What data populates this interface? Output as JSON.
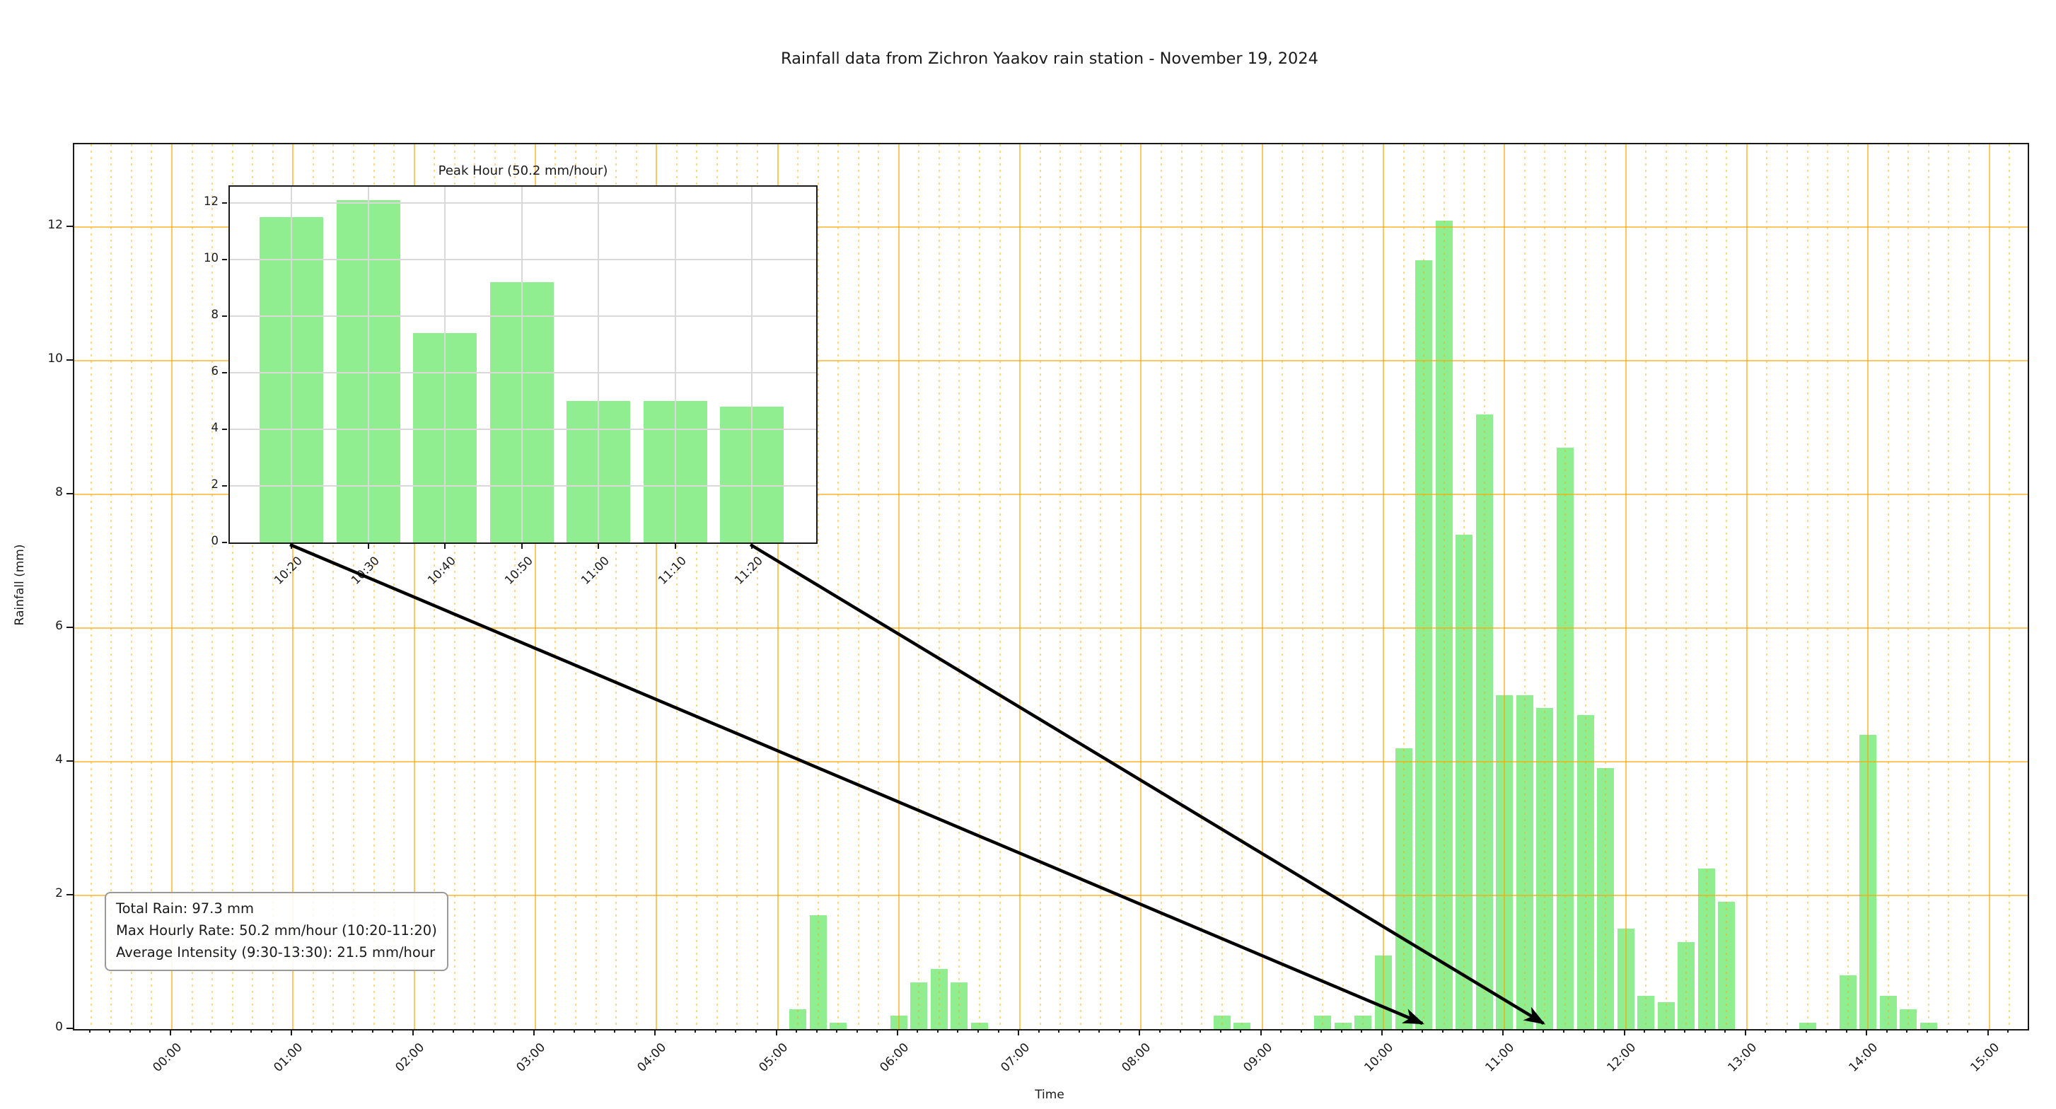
{
  "figure": {
    "title": "Rainfall data from Zichron Yaakov rain station - November 19, 2024"
  },
  "chart_data": [
    {
      "type": "bar",
      "title": "Rainfall data from Zichron Yaakov rain station - November 19, 2024",
      "xlabel": "Time",
      "ylabel": "Rainfall (mm)",
      "bar_interval_minutes": 10,
      "x_tick_labels": [
        "00:00",
        "01:00",
        "02:00",
        "03:00",
        "04:00",
        "05:00",
        "06:00",
        "07:00",
        "08:00",
        "09:00",
        "10:00",
        "11:00",
        "12:00",
        "13:00",
        "14:00",
        "15:00"
      ],
      "yticks": [
        0,
        2,
        4,
        6,
        8,
        10,
        12
      ],
      "ylim": [
        0,
        13.24
      ],
      "grid": {
        "major": "solid orange hourly and every 2 mm",
        "minor": "dotted orange every 10 min",
        "axisbelow": false
      },
      "points": [
        {
          "time": "05:10",
          "value": 0.3
        },
        {
          "time": "05:20",
          "value": 1.7
        },
        {
          "time": "05:30",
          "value": 0.1
        },
        {
          "time": "06:00",
          "value": 0.2
        },
        {
          "time": "06:10",
          "value": 0.7
        },
        {
          "time": "06:20",
          "value": 0.9
        },
        {
          "time": "06:30",
          "value": 0.7
        },
        {
          "time": "06:40",
          "value": 0.1
        },
        {
          "time": "08:40",
          "value": 0.2
        },
        {
          "time": "08:50",
          "value": 0.1
        },
        {
          "time": "09:30",
          "value": 0.2
        },
        {
          "time": "09:40",
          "value": 0.1
        },
        {
          "time": "09:50",
          "value": 0.2
        },
        {
          "time": "10:00",
          "value": 1.1
        },
        {
          "time": "10:10",
          "value": 4.2
        },
        {
          "time": "10:20",
          "value": 11.5
        },
        {
          "time": "10:30",
          "value": 12.1
        },
        {
          "time": "10:40",
          "value": 7.4
        },
        {
          "time": "10:50",
          "value": 9.2
        },
        {
          "time": "11:00",
          "value": 5.0
        },
        {
          "time": "11:10",
          "value": 5.0
        },
        {
          "time": "11:20",
          "value": 4.8
        },
        {
          "time": "11:30",
          "value": 8.7
        },
        {
          "time": "11:40",
          "value": 4.7
        },
        {
          "time": "11:50",
          "value": 3.9
        },
        {
          "time": "12:00",
          "value": 1.5
        },
        {
          "time": "12:10",
          "value": 0.5
        },
        {
          "time": "12:20",
          "value": 0.4
        },
        {
          "time": "12:30",
          "value": 1.3
        },
        {
          "time": "12:40",
          "value": 2.4
        },
        {
          "time": "12:50",
          "value": 1.9
        },
        {
          "time": "13:30",
          "value": 0.1
        },
        {
          "time": "13:50",
          "value": 0.8
        },
        {
          "time": "14:00",
          "value": 4.4
        },
        {
          "time": "14:10",
          "value": 0.5
        },
        {
          "time": "14:20",
          "value": 0.3
        },
        {
          "time": "14:30",
          "value": 0.1
        }
      ]
    },
    {
      "type": "bar",
      "title": "Peak Hour (50.2 mm/hour)",
      "categories": [
        "10:20",
        "10:30",
        "10:40",
        "10:50",
        "11:00",
        "11:10",
        "11:20"
      ],
      "values": [
        11.5,
        12.1,
        7.4,
        9.2,
        5.0,
        5.0,
        4.8
      ],
      "yticks": [
        0,
        2,
        4,
        6,
        8,
        10,
        12
      ],
      "ylim": [
        0,
        12.6
      ],
      "grid": "lightgray solid at ticks"
    }
  ],
  "annotation_box": {
    "lines": [
      "Total Rain: 97.3 mm",
      "Max Hourly Rate: 50.2 mm/hour (10:20-11:20)",
      "Average Intensity (9:30-13:30): 21.5 mm/hour"
    ]
  },
  "arrows": [
    {
      "inset_category": "10:20",
      "main_time": "10:20"
    },
    {
      "inset_category": "11:20",
      "main_time": "11:20"
    }
  ],
  "colors": {
    "bar": "#90EE90",
    "major_grid": "#FFA500",
    "minor_grid": "#FFC880",
    "inset_grid": "#D9D9D9",
    "axis": "#1A1A1A",
    "arrow": "#000000",
    "box_border": "#9A9A9A",
    "text": "#1A1A1A"
  }
}
